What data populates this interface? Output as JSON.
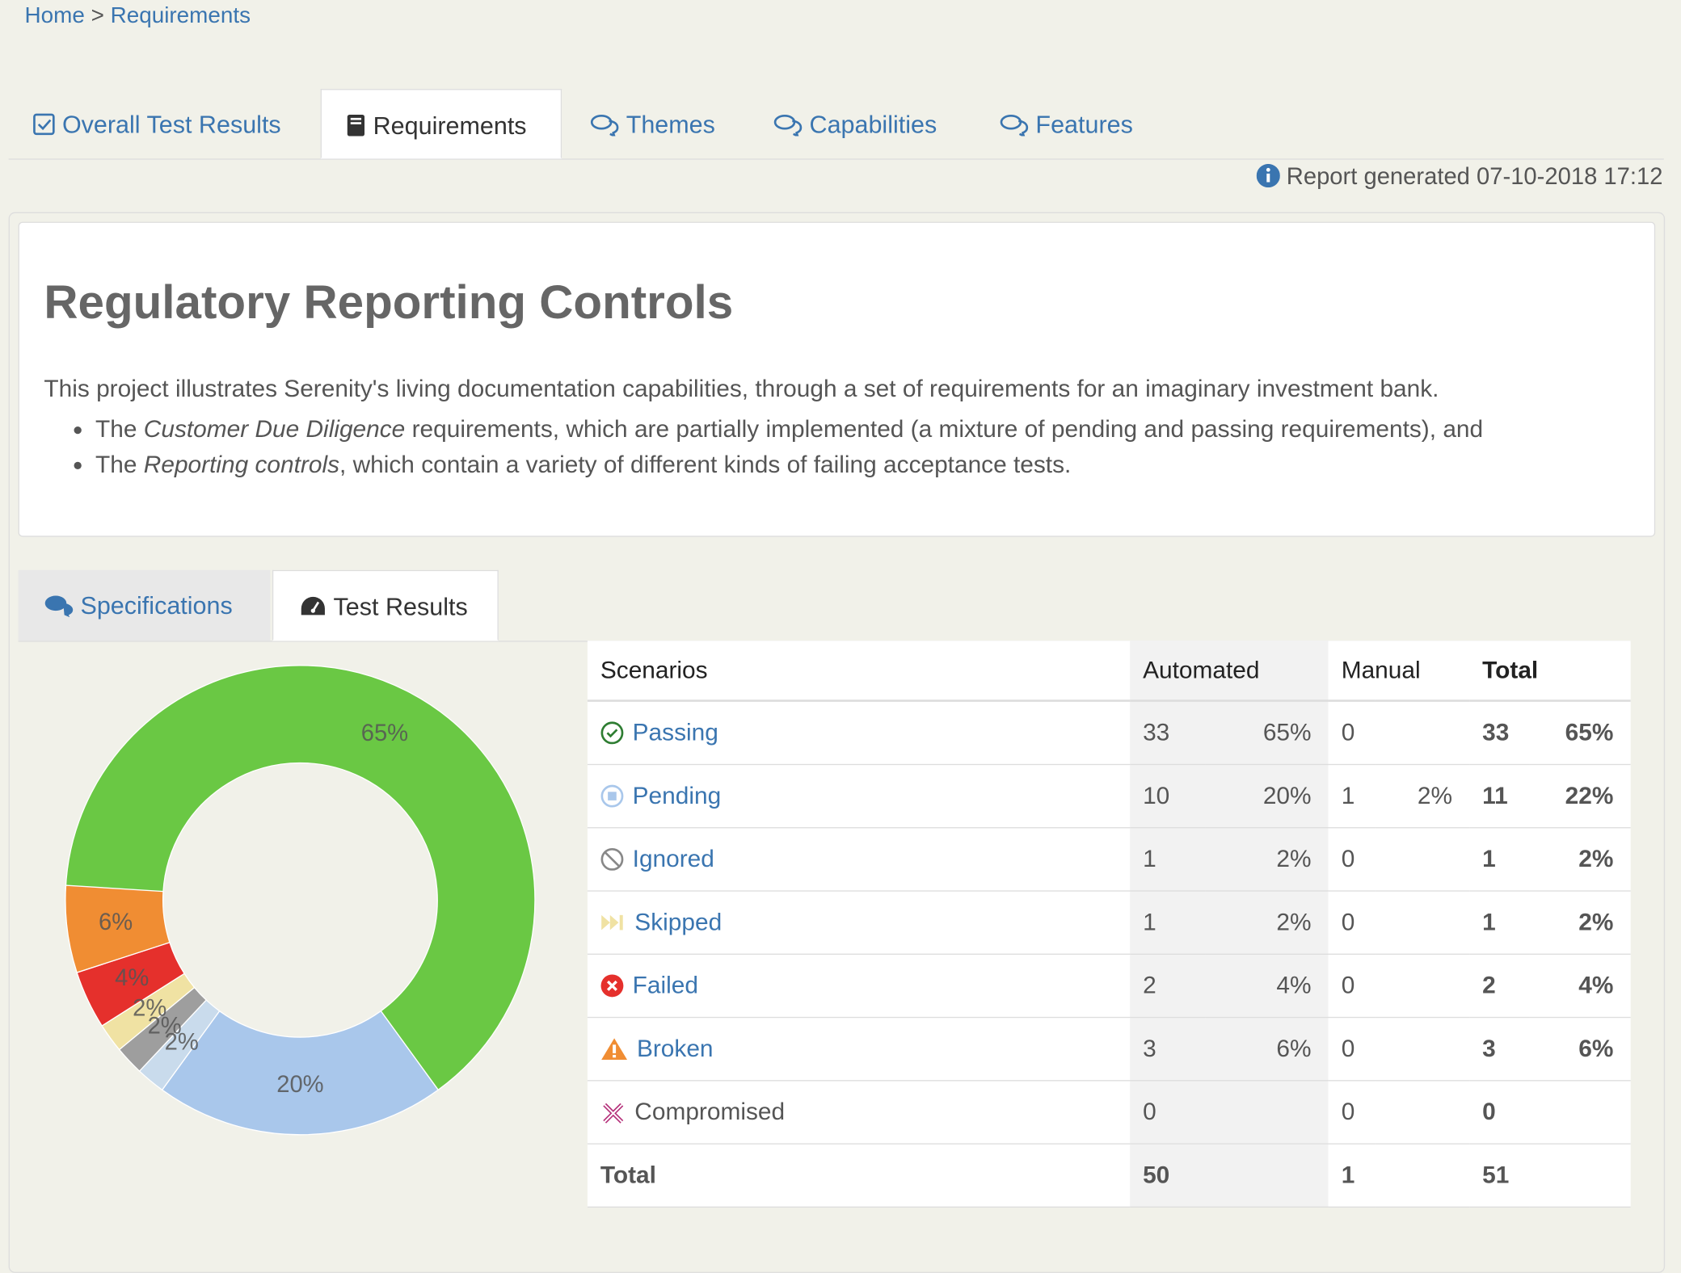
{
  "breadcrumb": {
    "home": "Home",
    "separator": ">",
    "current": "Requirements"
  },
  "tabs": [
    "Overall Test Results",
    "Requirements",
    "Themes",
    "Capabilities",
    "Features"
  ],
  "report_generated": "Report generated 07-10-2018 17:12",
  "title": "Regulatory Reporting Controls",
  "description": {
    "intro": "This project illustrates Serenity's living documentation capabilities, through a set of requirements for an imaginary investment bank.",
    "bullets": [
      {
        "pre": "The ",
        "em": "Customer Due Diligence",
        "post": " requirements, which are partially implemented (a mixture of pending and passing requirements), and"
      },
      {
        "pre": "The ",
        "em": "Reporting controls",
        "post": ", which contain a variety of different kinds of failing acceptance tests."
      }
    ]
  },
  "subtabs": [
    "Specifications",
    "Test Results"
  ],
  "chart_data": {
    "type": "pie",
    "values": [
      65,
      20,
      2,
      2,
      2,
      4,
      6
    ],
    "value_labels": [
      "65%",
      "20%",
      "2%",
      "2%",
      "2%",
      "4%",
      "6%"
    ],
    "colors": [
      "#6ac844",
      "#a9c7eb",
      "#c9dbec",
      "#9e9e9e",
      "#f0e2a3",
      "#e5302c",
      "#f08d33"
    ]
  },
  "table": {
    "header": [
      "Scenarios",
      "Automated",
      "Manual",
      "Total"
    ],
    "rows": [
      [
        "Passing",
        "33",
        "65%",
        "0",
        null,
        "33",
        "65%"
      ],
      [
        "Pending",
        "10",
        "20%",
        "1",
        "2%",
        "11",
        "22%"
      ],
      [
        "Ignored",
        "1",
        "2%",
        "0",
        null,
        "1",
        "2%"
      ],
      [
        "Skipped",
        "1",
        "2%",
        "0",
        null,
        "1",
        "2%"
      ],
      [
        "Failed",
        "2",
        "4%",
        "0",
        null,
        "2",
        "4%"
      ],
      [
        "Broken",
        "3",
        "6%",
        "0",
        null,
        "3",
        "6%"
      ],
      [
        "Compromised",
        "0",
        null,
        "0",
        null,
        "0",
        null
      ],
      [
        "Total",
        "50",
        null,
        "1",
        null,
        "51",
        null
      ]
    ]
  }
}
